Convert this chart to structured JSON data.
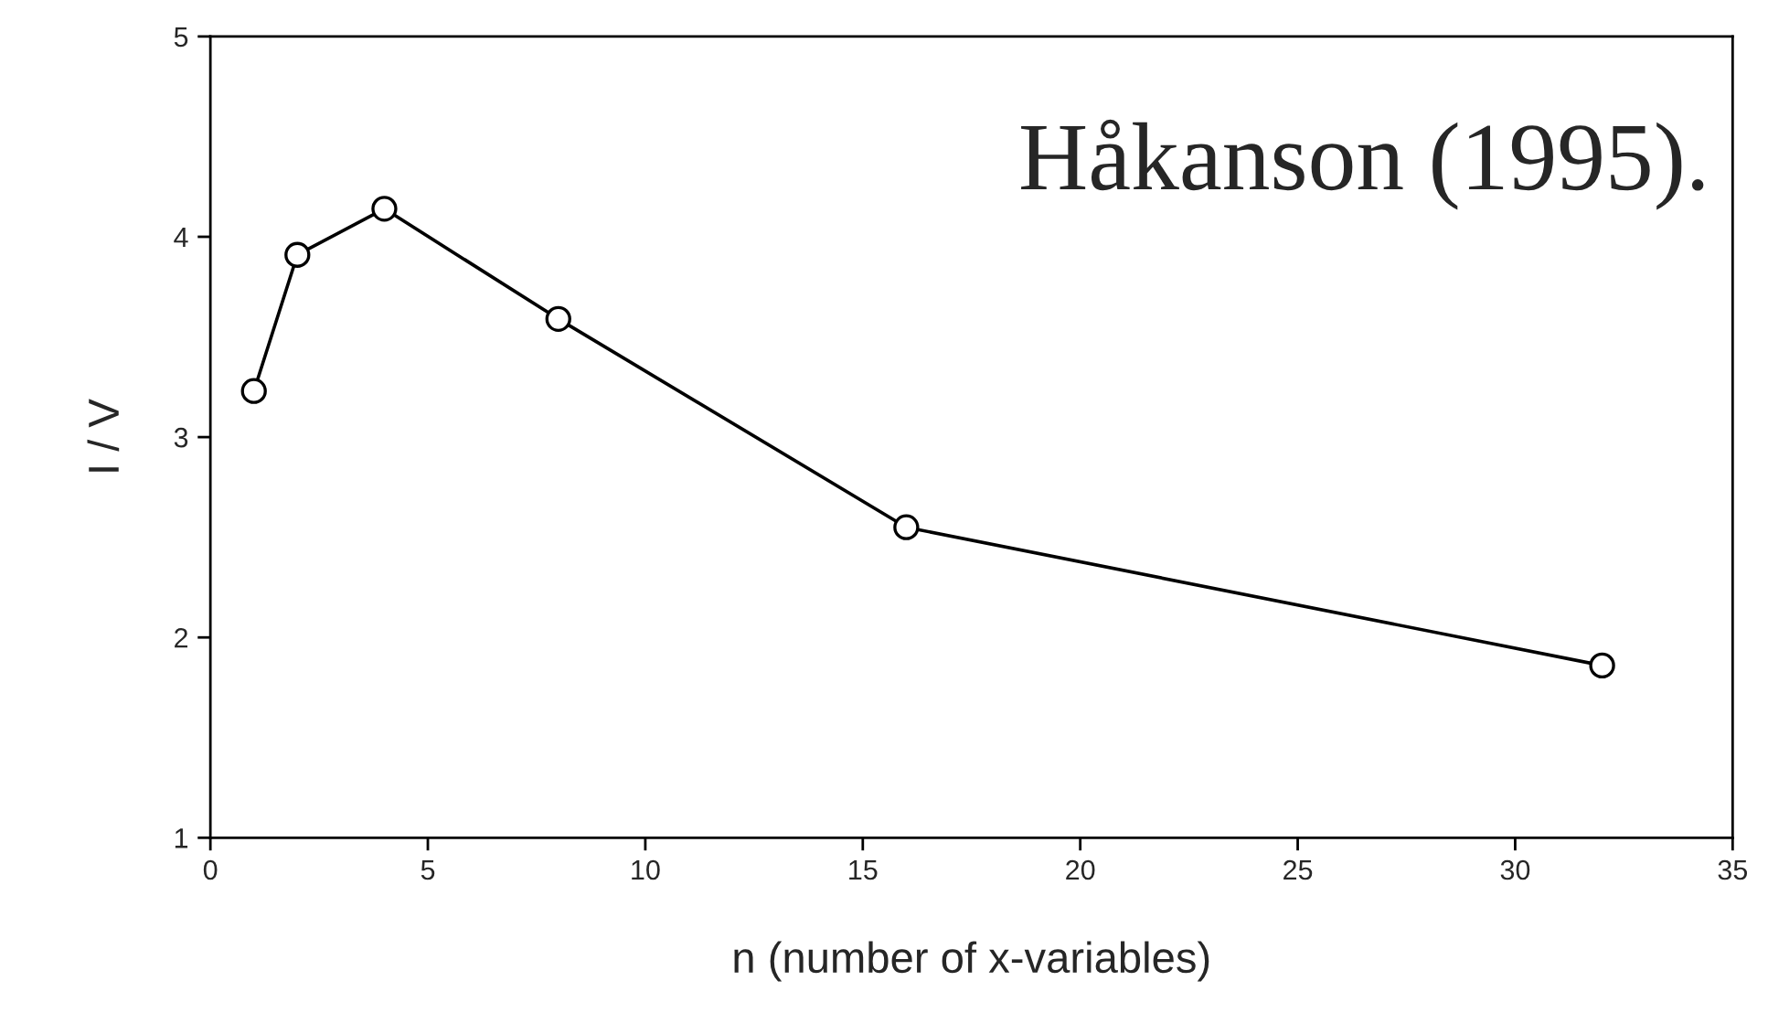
{
  "chart_data": {
    "type": "line",
    "xlabel": "n (number of x-variables)",
    "ylabel": "I / V",
    "annotations": [
      "Håkanson (1995)."
    ],
    "x": [
      1,
      2,
      4,
      8,
      16,
      32
    ],
    "series": [
      {
        "color": "#000000",
        "values": [
          3.23,
          3.91,
          4.14,
          3.59,
          2.55,
          1.86
        ]
      }
    ],
    "xlim": [
      0,
      35
    ],
    "xticks": [
      0,
      5,
      10,
      15,
      20,
      25,
      30,
      35
    ],
    "ylim": [
      1,
      5
    ],
    "yticks": [
      1,
      2,
      3,
      4,
      5
    ],
    "grid": false,
    "legend": false,
    "marker": "circle",
    "line_style": "solid"
  }
}
